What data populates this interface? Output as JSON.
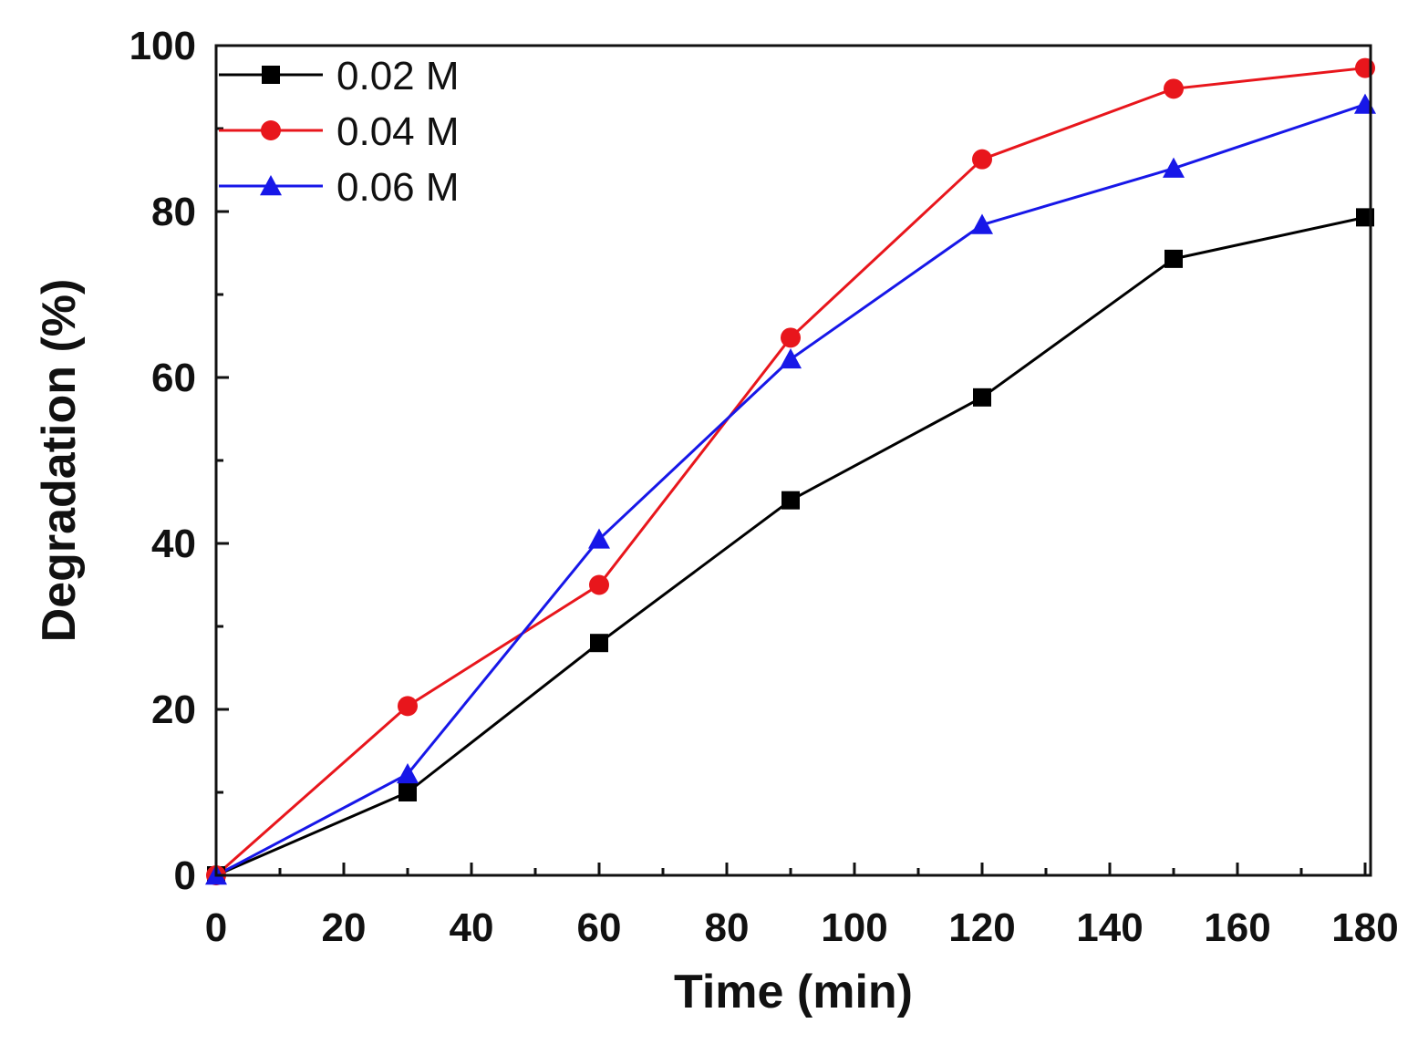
{
  "chart_data": {
    "type": "line",
    "xlabel": "Time (min)",
    "ylabel": "Degradation (%)",
    "xlim": [
      0,
      180
    ],
    "ylim": [
      0,
      100
    ],
    "xticks": [
      "0",
      "20",
      "40",
      "60",
      "80",
      "100",
      "120",
      "140",
      "160",
      "180"
    ],
    "yticks": [
      "0",
      "20",
      "40",
      "60",
      "80",
      "100"
    ],
    "x": [
      0,
      30,
      60,
      90,
      120,
      150,
      180
    ],
    "legend_position": "top-left",
    "grid": false,
    "series": [
      {
        "name": "0.02 M",
        "color": "#000000",
        "marker": "square",
        "values": [
          0,
          10,
          28,
          45.2,
          57.6,
          74.3,
          79.3
        ]
      },
      {
        "name": "0.04 M",
        "color": "#e8161c",
        "marker": "circle",
        "values": [
          0,
          20.4,
          35,
          64.8,
          86.3,
          94.8,
          97.3
        ]
      },
      {
        "name": "0.06 M",
        "color": "#1717e8",
        "marker": "triangle",
        "values": [
          0,
          12.2,
          40.5,
          62.2,
          78.4,
          85.2,
          92.9
        ]
      }
    ]
  }
}
